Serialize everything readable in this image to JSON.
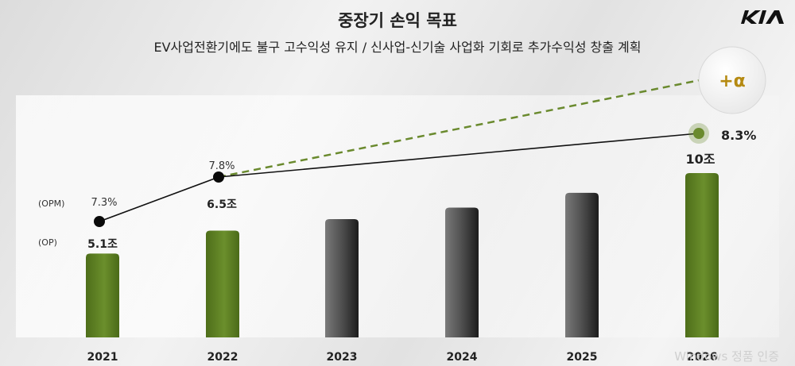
{
  "header": {
    "title": "중장기 손익 목표",
    "subtitle": "EV사업전환기에도 불구 고수익성 유지 / 신사업-신기술 사업화 기회로 추가수익성 창출 계획",
    "logo_text": "KIA"
  },
  "row_labels": {
    "opm": "(OPM)",
    "op": "(OP)"
  },
  "watermark": "Windows 정품 인증",
  "chart_data": {
    "type": "bar",
    "title": "중장기 손익 목표",
    "categories": [
      "2021",
      "2022",
      "2023",
      "2024",
      "2025",
      "2026"
    ],
    "series": [
      {
        "values": [
          5.1,
          6.5,
          7.2,
          7.9,
          8.8,
          10
        ],
        "bar_colors": [
          "#5a7a22",
          "#5a7a22",
          "#3c3c3c",
          "#3c3c3c",
          "#3c3c3c",
          "#5a7a22"
        ],
        "value_labels": [
          "5.1조",
          "6.5조",
          "",
          "",
          "",
          "10조"
        ]
      },
      {
        "type": "line",
        "values": [
          7.3,
          7.8,
          null,
          null,
          null,
          8.3
        ],
        "value_labels": [
          "7.3%",
          "7.8%",
          "",
          "",
          "",
          "8.3%"
        ]
      },
      {
        "type": "dashed-line",
        "points": [
          "2022",
          "+α"
        ],
        "label": "+α"
      }
    ],
    "ylim": [
      0,
      11
    ]
  },
  "colors": {
    "green_bar": "#5a7a22",
    "gray_bar": "#3c3c3c",
    "line": "#111111",
    "dashed": "#6a8a2e",
    "alpha_text": "#b58a12"
  }
}
